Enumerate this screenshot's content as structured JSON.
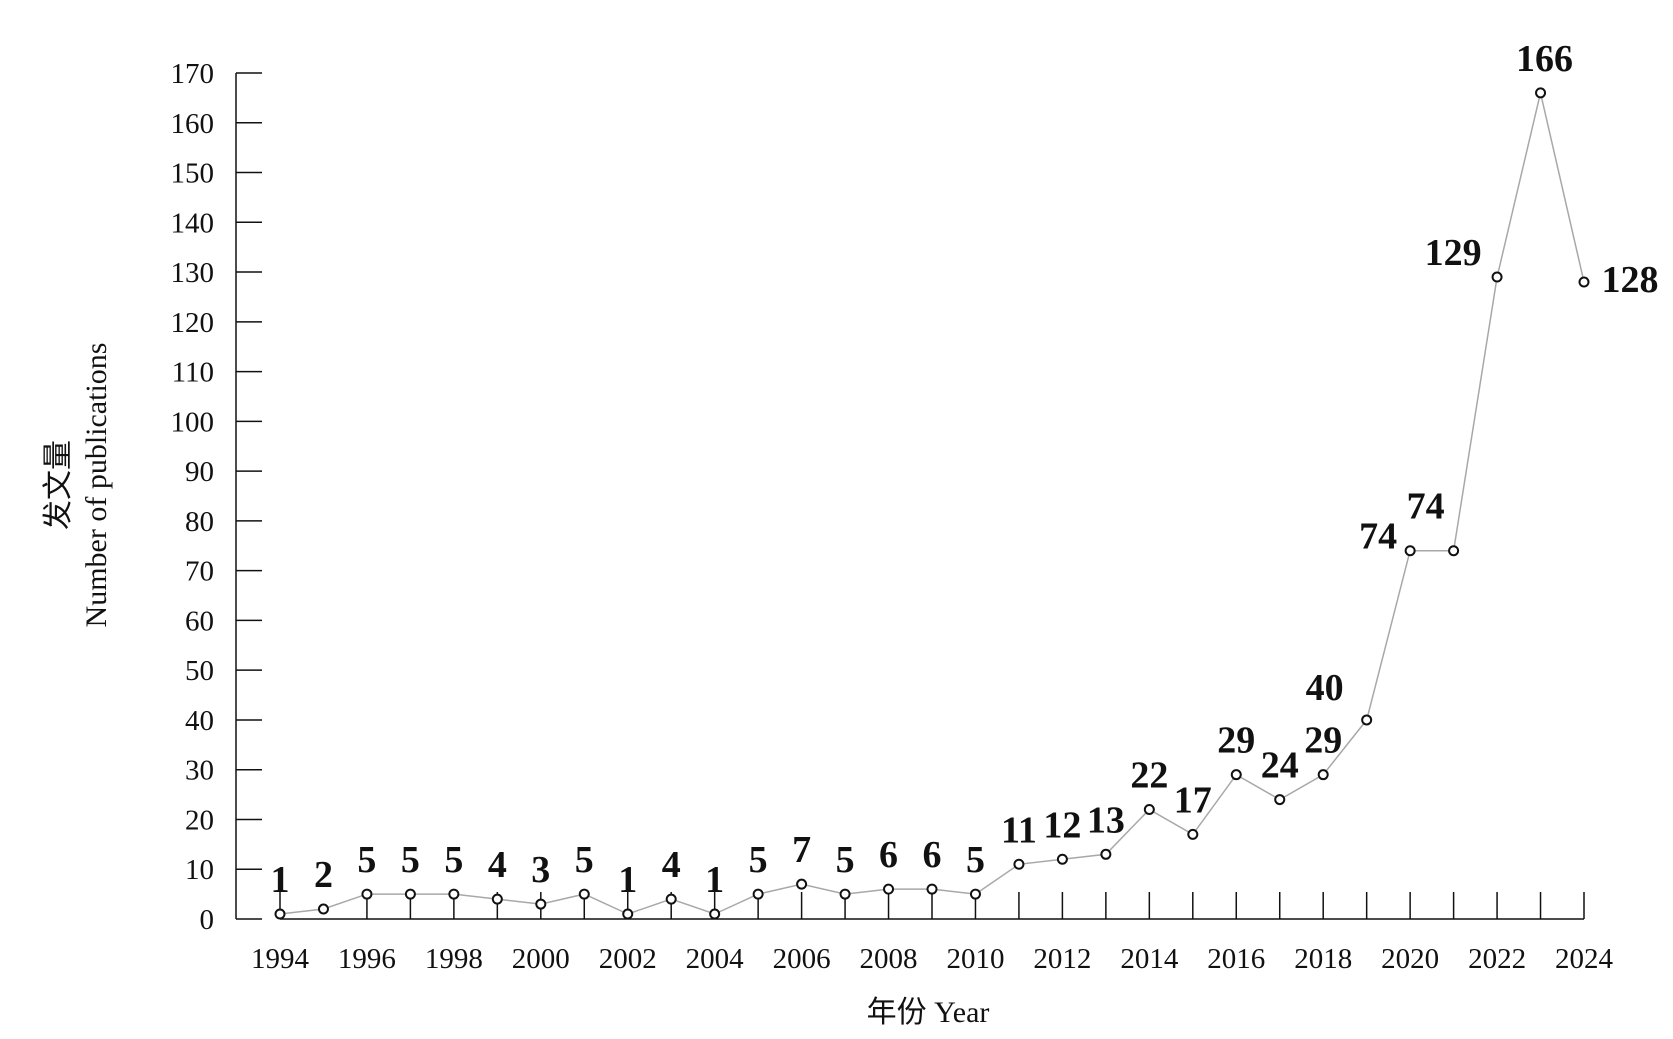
{
  "chart_data": {
    "type": "line",
    "title": "",
    "xlabel": "年份 Year",
    "ylabel_cn": "发文量",
    "ylabel_en": "Number of publications",
    "x": [
      1994,
      1995,
      1996,
      1997,
      1998,
      1999,
      2000,
      2001,
      2002,
      2003,
      2004,
      2005,
      2006,
      2007,
      2008,
      2009,
      2010,
      2011,
      2012,
      2013,
      2014,
      2015,
      2016,
      2017,
      2018,
      2019,
      2020,
      2021,
      2022,
      2023,
      2024
    ],
    "series": [
      {
        "values": [
          1,
          2,
          5,
          5,
          5,
          4,
          3,
          5,
          1,
          4,
          1,
          5,
          7,
          5,
          6,
          6,
          5,
          11,
          12,
          13,
          22,
          17,
          29,
          24,
          29,
          40,
          74,
          74,
          129,
          166,
          128
        ]
      }
    ],
    "xticks": [
      "1994",
      "1996",
      "1998",
      "2000",
      "2002",
      "2004",
      "2006",
      "2008",
      "2010",
      "2012",
      "2014",
      "2016",
      "2018",
      "2020",
      "2022",
      "2024"
    ],
    "yticks": [
      "0",
      "10",
      "20",
      "30",
      "40",
      "50",
      "60",
      "70",
      "80",
      "90",
      "100",
      "110",
      "120",
      "130",
      "140",
      "150",
      "160",
      "170"
    ],
    "xlim": [
      1994,
      2024
    ],
    "ylim": [
      0,
      170
    ],
    "grid": false,
    "legend": "none",
    "colors": {
      "line": "#a8a8a8",
      "marker_stroke": "#111111",
      "marker_fill": "#ffffff",
      "axis": "#111111",
      "text": "#111111"
    }
  }
}
